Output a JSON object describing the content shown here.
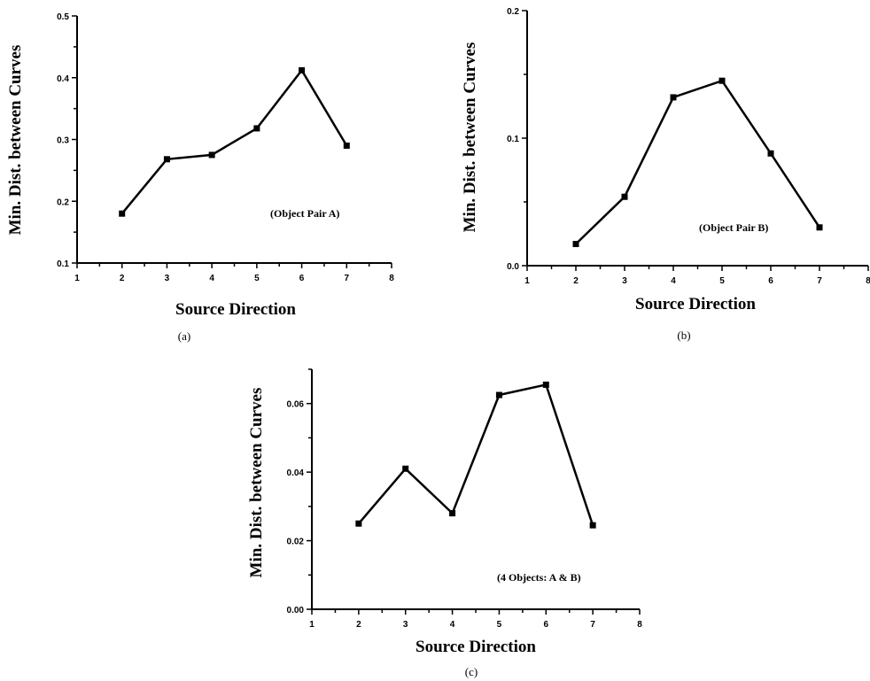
{
  "chart_data": [
    {
      "type": "line",
      "panel_label": "(a)",
      "xlabel": "Source Direction",
      "ylabel": "Min. Dist. between Curves",
      "annotation": "(Object Pair A)",
      "xlim": [
        1,
        8
      ],
      "ylim": [
        0.1,
        0.5
      ],
      "xticks": [
        "1",
        "2",
        "3",
        "4",
        "5",
        "6",
        "7",
        "8"
      ],
      "yticks": [
        "0.1",
        "0.2",
        "0.3",
        "0.4",
        "0.5"
      ],
      "x": [
        2,
        3,
        4,
        5,
        6,
        7
      ],
      "y": [
        0.18,
        0.268,
        0.275,
        0.318,
        0.412,
        0.29
      ]
    },
    {
      "type": "line",
      "panel_label": "(b)",
      "xlabel": "Source Direction",
      "ylabel": "Min. Dist. between Curves",
      "annotation": "(Object Pair B)",
      "xlim": [
        1,
        8
      ],
      "ylim": [
        0.0,
        0.2
      ],
      "xticks": [
        "1",
        "2",
        "3",
        "4",
        "5",
        "6",
        "7",
        "8"
      ],
      "yticks": [
        "0.0",
        "0.1",
        "0.2"
      ],
      "x": [
        2,
        3,
        4,
        5,
        6,
        7
      ],
      "y": [
        0.017,
        0.054,
        0.132,
        0.145,
        0.088,
        0.03
      ]
    },
    {
      "type": "line",
      "panel_label": "(c)",
      "xlabel": "Source Direction",
      "ylabel": "Min. Dist. between Curves",
      "annotation": "(4 Objects: A & B)",
      "xlim": [
        1,
        8
      ],
      "ylim": [
        0.0,
        0.07
      ],
      "xticks": [
        "1",
        "2",
        "3",
        "4",
        "5",
        "6",
        "7",
        "8"
      ],
      "yticks": [
        "0.00",
        "0.02",
        "0.04",
        "0.06"
      ],
      "x": [
        2,
        3,
        4,
        5,
        6,
        7
      ],
      "y": [
        0.025,
        0.041,
        0.028,
        0.0625,
        0.0655,
        0.0245
      ]
    }
  ]
}
